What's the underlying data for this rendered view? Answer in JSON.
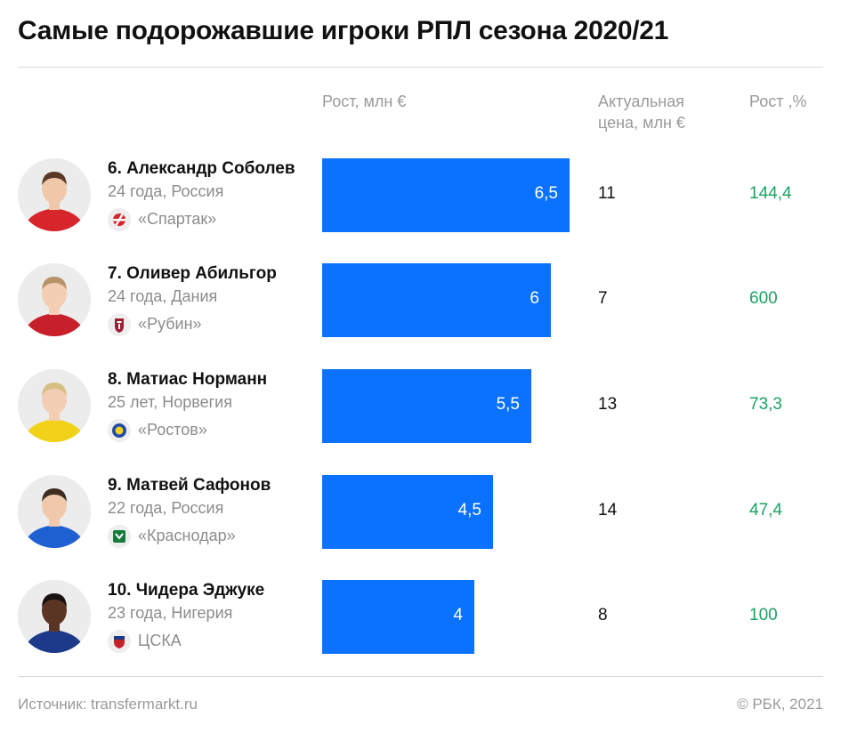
{
  "title": "Самые подорожавшие игроки РПЛ сезона 2020/21",
  "columns": {
    "growth": "Рост, млн €",
    "price_line1": "Актуальная",
    "price_line2": "цена, млн €",
    "pct": "Рост ,%"
  },
  "chart_data": {
    "type": "bar",
    "orientation": "horizontal",
    "title": "Самые подорожавшие игроки РПЛ сезона 2020/21",
    "categories": [
      "6. Александр Соболев",
      "7. Оливер Абильгор",
      "8. Матиас Норманн",
      "9. Матвей Сафонов",
      "10. Чидера Эджуке"
    ],
    "series": [
      {
        "name": "Рост, млн €",
        "values": [
          6.5,
          6,
          5.5,
          4.5,
          4
        ]
      }
    ],
    "xlim": [
      0,
      6.5
    ]
  },
  "players": [
    {
      "name": "6. Александр Соболев",
      "sub": "24 года, Россия",
      "club": "«Спартак»",
      "club_icon": "spartak-logo",
      "growth": 6.5,
      "growth_label": "6,5",
      "price": "11",
      "pct": "144,4",
      "shirt_color": "#d7262b",
      "skin": "#f0c7a8",
      "hair": "#5a3a26"
    },
    {
      "name": "7. Оливер Абильгор",
      "sub": "24 года, Дания",
      "club": "«Рубин»",
      "club_icon": "rubin-logo",
      "growth": 6,
      "growth_label": "6",
      "price": "7",
      "pct": "600",
      "shirt_color": "#c8202a",
      "skin": "#f3cdb4",
      "hair": "#b89368"
    },
    {
      "name": "8. Матиас Норманн",
      "sub": "25 лет, Норвегия",
      "club": "«Ростов»",
      "club_icon": "rostov-logo",
      "growth": 5.5,
      "growth_label": "5,5",
      "price": "13",
      "pct": "73,3",
      "shirt_color": "#f2d219",
      "skin": "#f3cdb4",
      "hair": "#d8bf82"
    },
    {
      "name": "9. Матвей Сафонов",
      "sub": "22 года, Россия",
      "club": "«Краснодар»",
      "club_icon": "krasnodar-logo",
      "growth": 4.5,
      "growth_label": "4,5",
      "price": "14",
      "pct": "47,4",
      "shirt_color": "#1e5fd1",
      "skin": "#f0c9ad",
      "hair": "#3e2c1f"
    },
    {
      "name": "10. Чидера Эджуке",
      "sub": "23 года, Нигерия",
      "club": "ЦСКА",
      "club_icon": "cska-logo",
      "growth": 4,
      "growth_label": "4",
      "price": "8",
      "pct": "100",
      "shirt_color": "#1d3a8a",
      "skin": "#5a3523",
      "hair": "#1a1210"
    }
  ],
  "footer": {
    "source": "Источник: transfermarkt.ru",
    "copyright": "© РБК, 2021"
  },
  "colors": {
    "bar": "#0a72ff",
    "pct_text": "#1aa363",
    "muted_text": "#9a9a9a"
  }
}
